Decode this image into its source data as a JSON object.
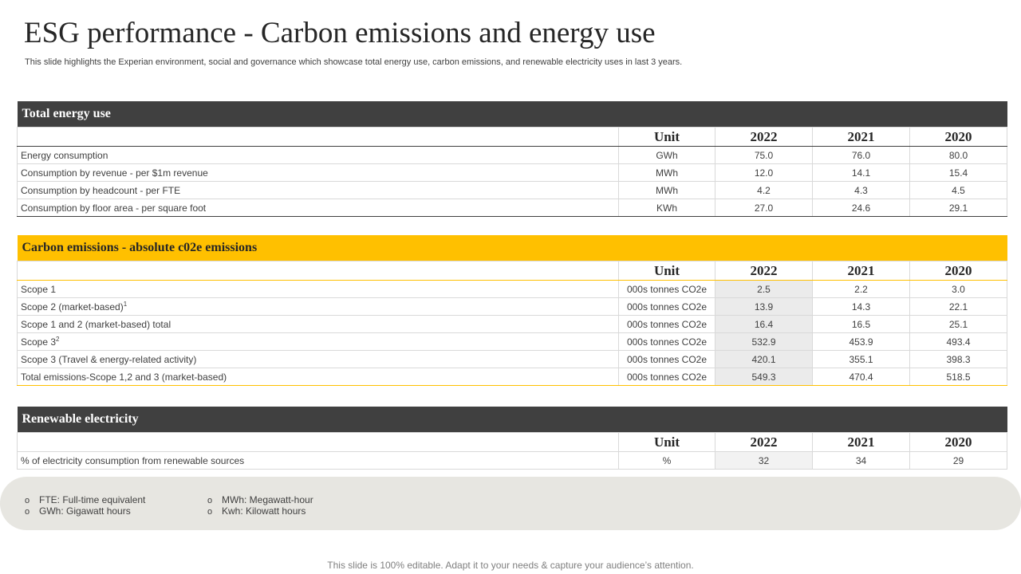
{
  "page": {
    "title": "ESG performance - Carbon emissions and energy use",
    "subtitle": "This slide highlights the Experian environment, social and governance which showcase total energy use, carbon emissions, and renewable electricity uses in last 3 years.",
    "footer": "This slide is 100% editable. Adapt it to your needs & capture your audience’s attention."
  },
  "colors": {
    "dark_header": "#404040",
    "gold_header": "#ffc000",
    "highlight": "#ebebeb",
    "notes_bg": "#e7e6e1"
  },
  "energy": {
    "heading": "Total energy use",
    "columns": [
      "Unit",
      "2022",
      "2021",
      "2020"
    ],
    "rows": [
      {
        "label": "Energy consumption",
        "unit": "GWh",
        "v2022": "75.0",
        "v2021": "76.0",
        "v2020": "80.0"
      },
      {
        "label": "Consumption  by revenue   - per $1m revenue",
        "unit": "MWh",
        "v2022": "12.0",
        "v2021": "14.1",
        "v2020": "15.4"
      },
      {
        "label": "Consumption  by headcount  - per FTE",
        "unit": "MWh",
        "v2022": "4.2",
        "v2021": "4.3",
        "v2020": "4.5"
      },
      {
        "label": "Consumption  by floor area - per square foot",
        "unit": "KWh",
        "v2022": "27.0",
        "v2021": "24.6",
        "v2020": "29.1"
      }
    ]
  },
  "carbon": {
    "heading": "Carbon emissions - absolute c02e emissions",
    "columns": [
      "Unit",
      "2022",
      "2021",
      "2020"
    ],
    "rows": [
      {
        "label": "Scope 1",
        "sup": "",
        "unit": "000s tonnes CO2e",
        "v2022": "2.5",
        "v2021": "2.2",
        "v2020": "3.0"
      },
      {
        "label": "Scope 2 (market-based)",
        "sup": "1",
        "unit": "000s tonnes CO2e",
        "v2022": "13.9",
        "v2021": "14.3",
        "v2020": "22.1"
      },
      {
        "label": "Scope 1 and 2 (market-based)  total",
        "sup": "",
        "unit": "000s tonnes CO2e",
        "v2022": "16.4",
        "v2021": "16.5",
        "v2020": "25.1"
      },
      {
        "label": "Scope 3",
        "sup": "2",
        "unit": "000s tonnes CO2e",
        "v2022": "532.9",
        "v2021": "453.9",
        "v2020": "493.4"
      },
      {
        "label": "Scope 3 (Travel  & energy-related  activity)",
        "sup": "",
        "unit": "000s tonnes CO2e",
        "v2022": "420.1",
        "v2021": "355.1",
        "v2020": "398.3"
      },
      {
        "label": "Total emissions-Scope 1,2 and 3 (market-based)",
        "sup": "",
        "unit": "000s tonnes CO2e",
        "v2022": "549.3",
        "v2021": "470.4",
        "v2020": "518.5"
      }
    ]
  },
  "renewable": {
    "heading": "Renewable electricity",
    "columns": [
      "Unit",
      "2022",
      "2021",
      "2020"
    ],
    "rows": [
      {
        "label": "% of electricity consumption from renewable  sources",
        "unit": "%",
        "v2022": "32",
        "v2021": "34",
        "v2020": "29"
      }
    ]
  },
  "notes": {
    "bullet": "o",
    "items": [
      "FTE: Full-time equivalent",
      "GWh: Gigawatt hours",
      "MWh:  Megawatt-hour",
      "Kwh: Kilowatt hours"
    ]
  }
}
